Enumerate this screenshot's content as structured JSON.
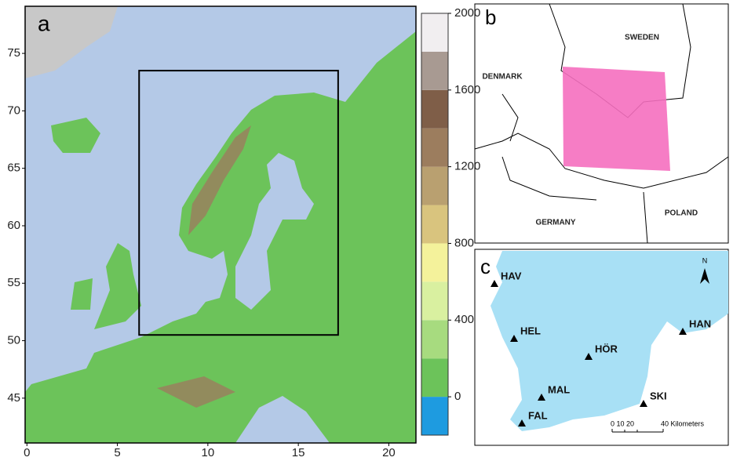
{
  "panel_a": {
    "label": "a",
    "xlim": [
      -0.1,
      21.5
    ],
    "ylim": [
      41.1,
      79.1
    ],
    "xticks": [
      0,
      5,
      10,
      15,
      20
    ],
    "yticks": [
      45,
      50,
      55,
      60,
      65,
      70,
      75
    ],
    "domain_box": {
      "x": [
        6.2,
        17.2
      ],
      "y": [
        50.5,
        73.5
      ]
    },
    "colorbar": {
      "lim": [
        -200,
        2000
      ],
      "ticks": [
        0,
        400,
        800,
        1200,
        1600,
        2000
      ],
      "bounds": [
        -200,
        0,
        200,
        400,
        600,
        800,
        1000,
        1200,
        1400,
        1600,
        1800,
        2000
      ],
      "colors": [
        "#1e9be0",
        "#6cc35a",
        "#a7db7f",
        "#d9f0a0",
        "#f4f29b",
        "#d9c47e",
        "#b9a070",
        "#9c7d5e",
        "#7f5e48",
        "#a89a92",
        "#f1eef0"
      ]
    }
  },
  "panel_b": {
    "label": "b",
    "countries": [
      "SWEDEN",
      "DENMARK",
      "GERMANY",
      "POLAND"
    ]
  },
  "panel_c": {
    "label": "c",
    "north": "N",
    "stations": [
      "HAV",
      "HEL",
      "HÖR",
      "MAL",
      "SKI",
      "FAL",
      "HAN"
    ],
    "scale_labels": [
      "0 10 20",
      "40 Kilometers"
    ]
  }
}
